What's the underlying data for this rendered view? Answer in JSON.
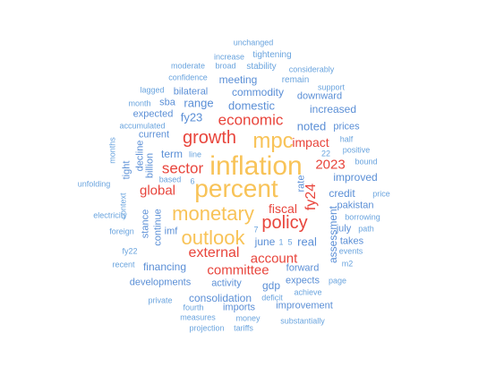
{
  "palette": {
    "large": "#f8c358",
    "medium": "#e8453c",
    "small": "#5b8fd6",
    "tiny": "#6aa4de"
  },
  "words": {
    "inflation": "inflation",
    "percent": "percent",
    "monetary": "monetary",
    "outlook": "outlook",
    "mpc": "mpc",
    "growth": "growth",
    "policy": "policy",
    "economic": "economic",
    "sector": "sector",
    "external": "external",
    "committee": "committee",
    "account": "account",
    "global": "global",
    "fiscal": "fiscal",
    "impact": "impact",
    "year2023": "2023",
    "fy24": "fy24",
    "fy23": "fy23",
    "range": "range",
    "domestic": "domestic",
    "commodity": "commodity",
    "meeting": "meeting",
    "term": "term",
    "current": "current",
    "expected": "expected",
    "bilateral": "bilateral",
    "sba": "sba",
    "noted": "noted",
    "increased": "increased",
    "downward": "downward",
    "prices": "prices",
    "improved": "improved",
    "credit": "credit",
    "pakistan": "pakistan",
    "july": "july",
    "takes": "takes",
    "assessment": "assessment",
    "real": "real",
    "june": "june",
    "forward": "forward",
    "imf": "imf",
    "financing": "financing",
    "activity": "activity",
    "consolidation": "consolidation",
    "gdp": "gdp",
    "expects": "expects",
    "imports": "imports",
    "improvement": "improvement",
    "developments": "developments",
    "continue": "continue",
    "stance": "stance",
    "billion": "billion",
    "decline": "decline",
    "tight": "tight",
    "rate": "rate",
    "tightening": "tightening",
    "stability": "stability",
    "remain": "remain",
    "unchanged": "unchanged",
    "increase": "increase",
    "broad": "broad",
    "considerably": "considerably",
    "moderate": "moderate",
    "confidence": "confidence",
    "support": "support",
    "lagged": "lagged",
    "month": "month",
    "accumulated": "accumulated",
    "months": "months",
    "half": "half",
    "positive": "positive",
    "bound": "bound",
    "n22": "22",
    "line": "line",
    "based": "based",
    "n6": "6",
    "n7": "7",
    "n1": "1",
    "n5": "5",
    "unfolding": "unfolding",
    "context": "context",
    "price": "price",
    "electricity": "electricity",
    "borrowing": "borrowing",
    "foreign": "foreign",
    "path": "path",
    "events": "events",
    "fy22": "fy22",
    "m2": "m2",
    "recent": "recent",
    "page": "page",
    "achieve": "achieve",
    "deficit": "deficit",
    "private": "private",
    "fourth": "fourth",
    "measures": "measures",
    "money": "money",
    "substantially": "substantially",
    "projection": "projection",
    "tariffs": "tariffs"
  }
}
